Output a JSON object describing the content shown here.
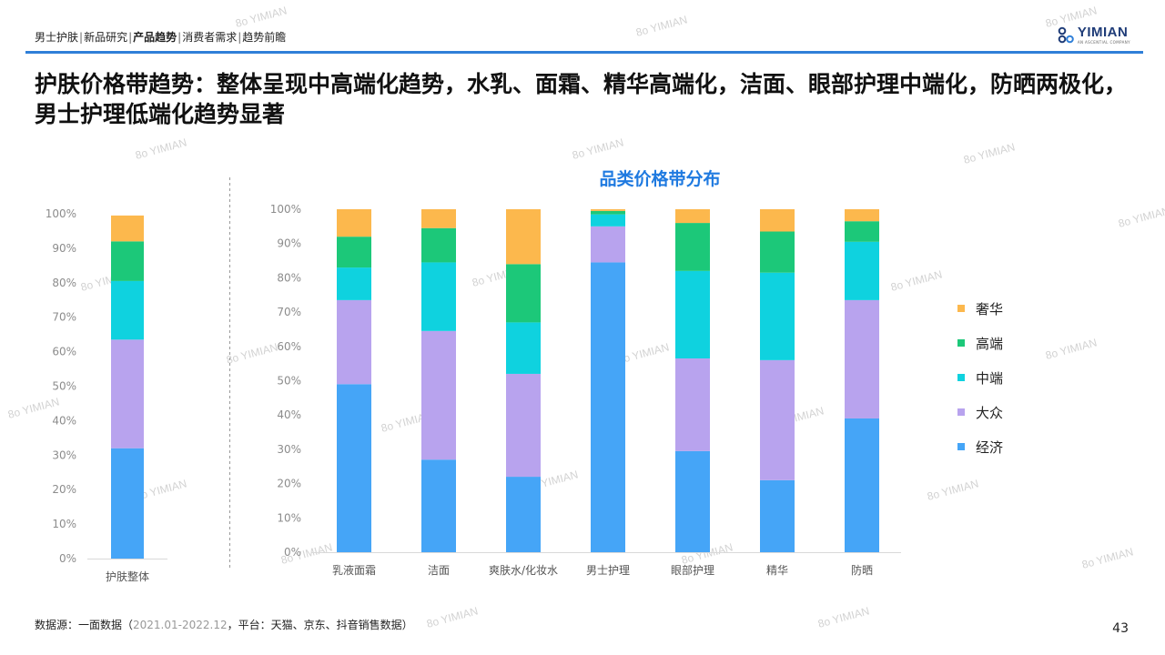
{
  "breadcrumb": {
    "items": [
      "男士护肤",
      "新品研究",
      "产品趋势",
      "消费者需求",
      "趋势前瞻"
    ],
    "current_index": 2,
    "separator": "|"
  },
  "logo": {
    "text": "YIMIAN",
    "tagline": "AN ASCENTIAL COMPANY",
    "watermark": "YIMIAN"
  },
  "title": "护肤价格带趋势：整体呈现中高端化趋势，水乳、面霜、精华高端化，洁面、眼部护理中端化，防晒两极化，男士护理低端化趋势显著",
  "colors": {
    "accent": "#2f7fd8",
    "title_blue": "#1f7ae0",
    "series": {
      "经济": "#45a5f7",
      "大众": "#b8a3ee",
      "中端": "#0fd2df",
      "高端": "#1cc879",
      "奢华": "#fcb84d"
    }
  },
  "chart_data": [
    {
      "type": "bar",
      "stacked": true,
      "categories": [
        "护肤整体"
      ],
      "series": [
        {
          "name": "经济",
          "values": [
            32
          ]
        },
        {
          "name": "大众",
          "values": [
            31.5
          ]
        },
        {
          "name": "中端",
          "values": [
            17
          ]
        },
        {
          "name": "高端",
          "values": [
            11.5
          ]
        },
        {
          "name": "奢华",
          "values": [
            7.5
          ]
        }
      ],
      "ylim": [
        0,
        100
      ],
      "yticks": [
        "0%",
        "10%",
        "20%",
        "30%",
        "40%",
        "50%",
        "60%",
        "70%",
        "80%",
        "90%",
        "100%"
      ],
      "grid": false
    },
    {
      "type": "bar",
      "stacked": true,
      "title": "品类价格带分布",
      "categories": [
        "乳液面霜",
        "洁面",
        "爽肤水/化妆水",
        "男士护理",
        "眼部护理",
        "精华",
        "防晒"
      ],
      "series": [
        {
          "name": "经济",
          "values": [
            49,
            27,
            22,
            84.5,
            29.5,
            21,
            39
          ]
        },
        {
          "name": "大众",
          "values": [
            24.5,
            37.5,
            30,
            10.5,
            27,
            35,
            34.5
          ]
        },
        {
          "name": "中端",
          "values": [
            9.5,
            20,
            15,
            3.5,
            25.5,
            25.5,
            17
          ]
        },
        {
          "name": "高端",
          "values": [
            9,
            10,
            17,
            1,
            14,
            12,
            6
          ]
        },
        {
          "name": "奢华",
          "values": [
            8,
            5.5,
            16,
            0.5,
            4,
            6.5,
            3.5
          ]
        }
      ],
      "ylim": [
        0,
        100
      ],
      "yticks": [
        "0%",
        "10%",
        "20%",
        "30%",
        "40%",
        "50%",
        "60%",
        "70%",
        "80%",
        "90%",
        "100%"
      ],
      "grid": false,
      "legend": {
        "position": "right",
        "order": [
          "奢华",
          "高端",
          "中端",
          "大众",
          "经济"
        ]
      }
    }
  ],
  "source": {
    "prefix": "数据源：一面数据（",
    "date": "2021.01-2022.12",
    "suffix": "，平台：天猫、京东、抖音销售数据）"
  },
  "page_number": "43"
}
